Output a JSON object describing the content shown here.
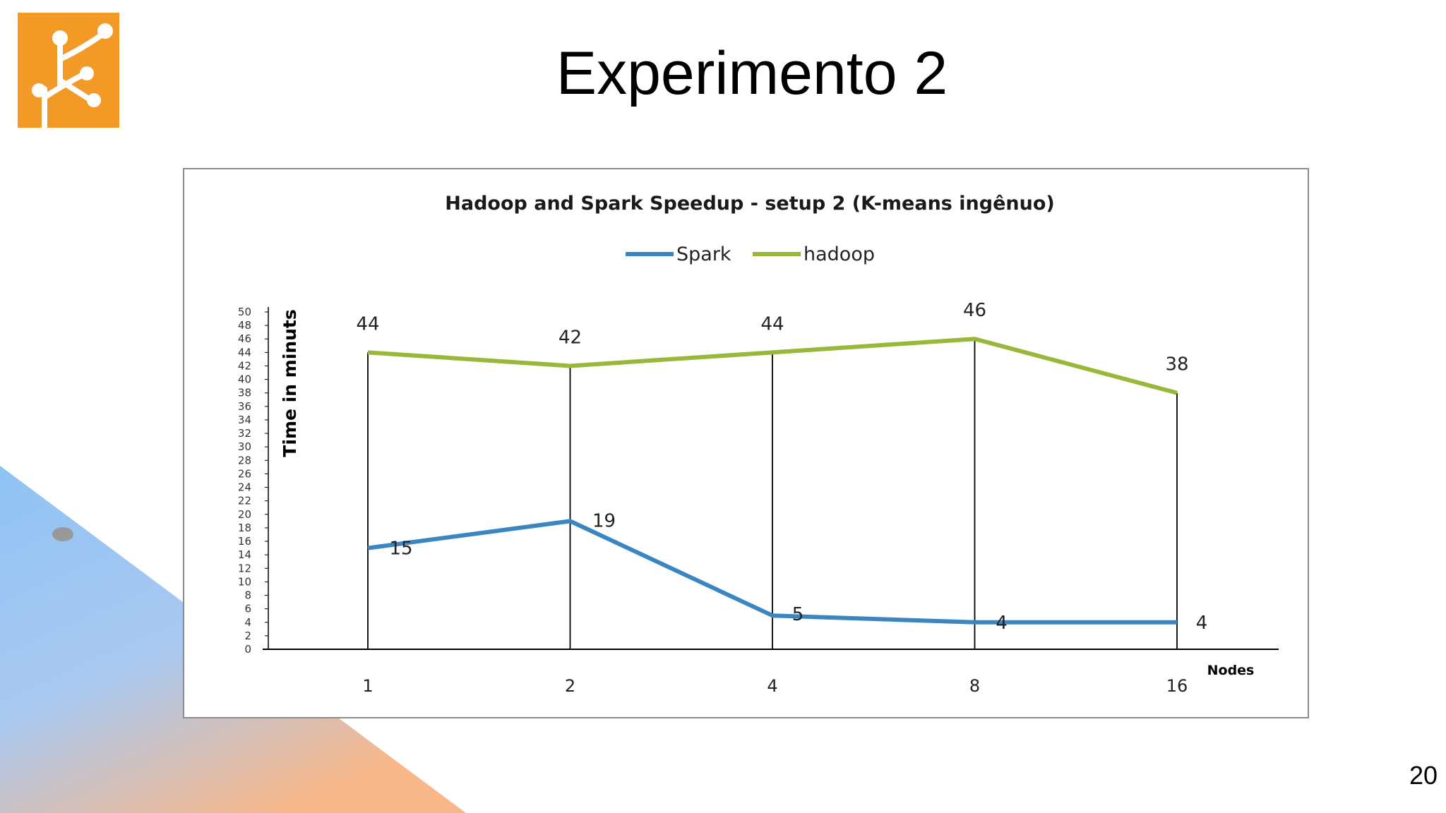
{
  "slide": {
    "title": "Experimento 2",
    "page_number": "20",
    "colors": {
      "logo": "#f39a26",
      "accent_blue": "#8fc3f5",
      "accent_orange": "#f8b88a"
    }
  },
  "logo": {
    "icon": "tree-branch-icon"
  },
  "chart_data": {
    "type": "line",
    "title": "Hadoop and Spark Speedup - setup 2 (K-means ingênuo)",
    "xlabel": "Nodes",
    "ylabel": "Time in minuts",
    "categories": [
      "1",
      "2",
      "4",
      "8",
      "16"
    ],
    "ylim": [
      0,
      50
    ],
    "yticks": [
      0,
      2,
      4,
      6,
      8,
      10,
      12,
      14,
      16,
      18,
      20,
      22,
      24,
      26,
      28,
      30,
      32,
      34,
      36,
      38,
      40,
      42,
      44,
      46,
      48,
      50
    ],
    "legend_position": "top",
    "series": [
      {
        "name": "Spark",
        "color": "#3a86c3",
        "values": [
          15,
          19,
          5,
          4,
          4
        ]
      },
      {
        "name": "hadoop",
        "color": "#98b83a",
        "values": [
          44,
          42,
          44,
          46,
          38
        ]
      }
    ]
  }
}
